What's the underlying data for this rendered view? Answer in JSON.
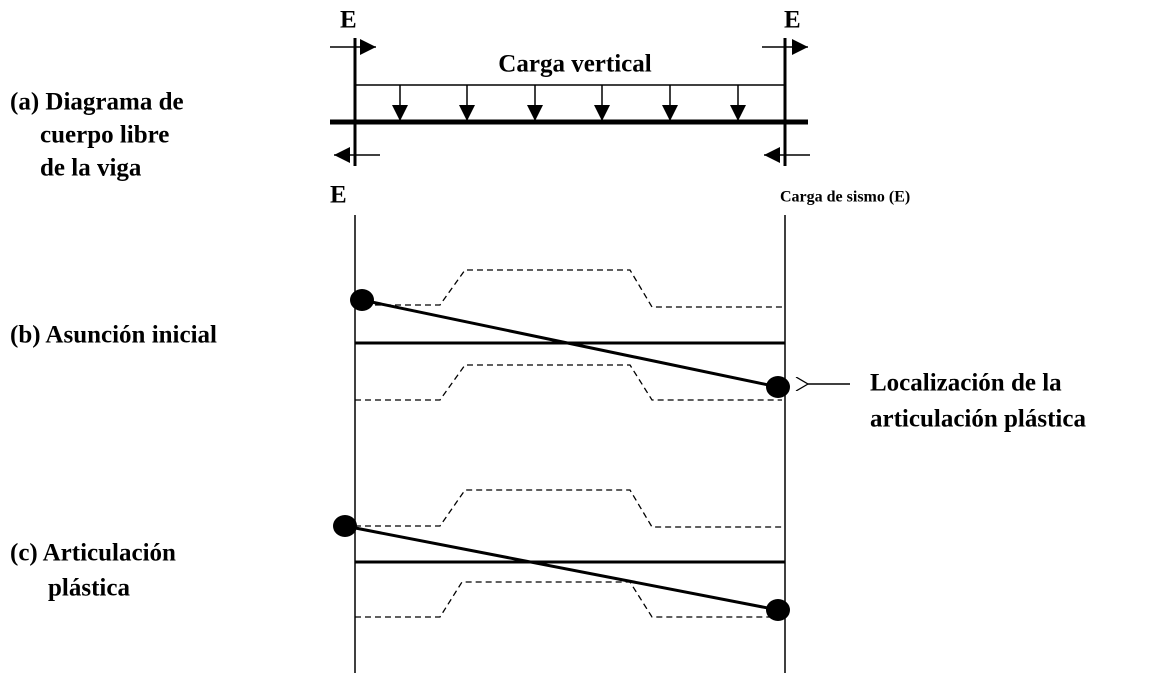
{
  "panel_a": {
    "label_lines": [
      "(a) Diagrama de",
      "cuerpo libre",
      "de la viga"
    ],
    "load_label": "Carga vertical",
    "force_labels": [
      "E",
      "E",
      "E"
    ],
    "seismic_label": "Carga de sismo (E)"
  },
  "panel_b": {
    "label": "(b)  Asunción inicial",
    "annotation_lines": [
      "Localización de la",
      "articulación plástica"
    ]
  },
  "panel_c": {
    "label_lines": [
      "(c)  Articulación",
      "plástica"
    ]
  }
}
